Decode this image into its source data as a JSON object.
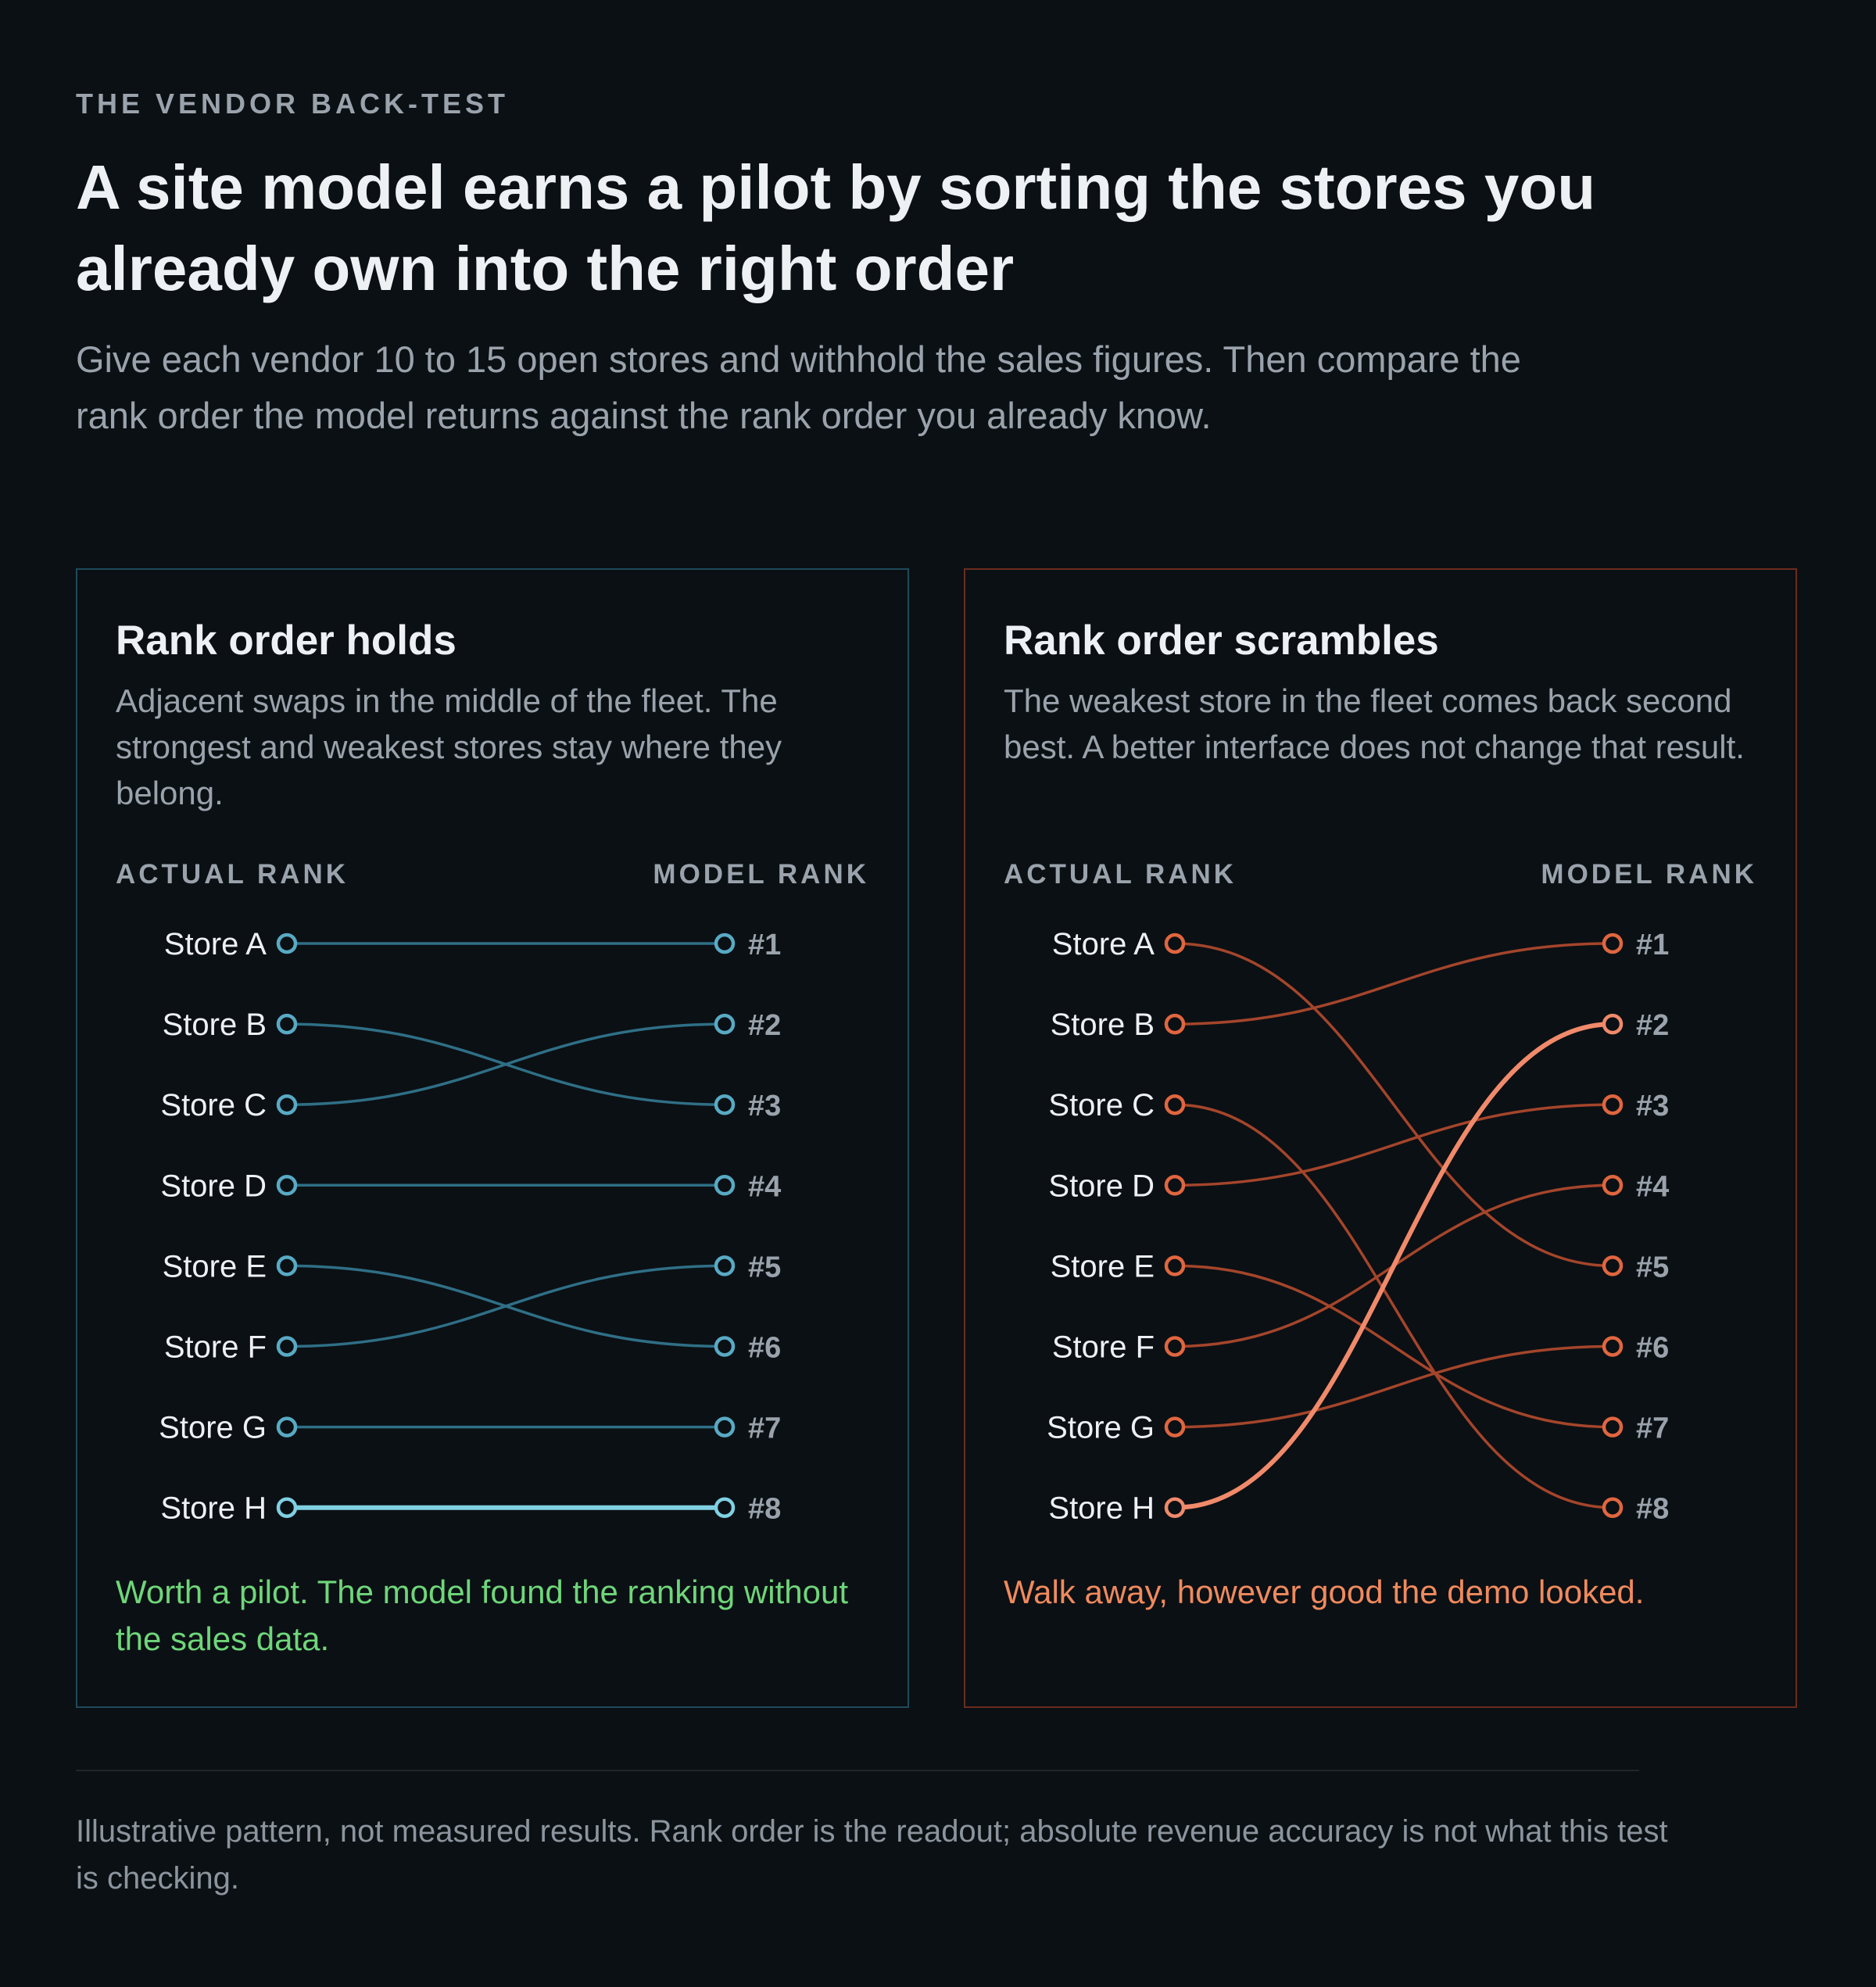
{
  "eyebrow": "THE VENDOR BACK-TEST",
  "headline": "A site model earns a pilot by sorting the stores you already own into the right order",
  "intro": "Give each vendor 10 to 15 open stores and withhold the sales figures. Then compare the rank order the model returns against the rank order you already know.",
  "panels": {
    "left": {
      "title": "Rank order holds",
      "description": "Adjacent swaps in the middle of the fleet. The strongest and weakest stores stay where they belong.",
      "actual_header": "ACTUAL RANK",
      "model_header": "MODEL RANK",
      "verdict": "Worth a pilot. The model found the ranking without the sales data.",
      "line_color": "#2f6f86",
      "highlight_color": "#7fd0e2",
      "verdict_color": "#6fd67a"
    },
    "right": {
      "title": "Rank order scrambles",
      "description": "The weakest store in the fleet comes back second best. A better interface does not change that result.",
      "actual_header": "ACTUAL RANK",
      "model_header": "MODEL RANK",
      "verdict": "Walk away, however good the demo looked.",
      "line_color": "#a4452b",
      "highlight_color": "#f08a6a",
      "verdict_color": "#f08a5d"
    }
  },
  "chart_data": [
    {
      "type": "slope",
      "title": "Rank order holds",
      "stores": [
        "Store A",
        "Store B",
        "Store C",
        "Store D",
        "Store E",
        "Store F",
        "Store G",
        "Store H"
      ],
      "actual_rank": [
        1,
        2,
        3,
        4,
        5,
        6,
        7,
        8
      ],
      "model_rank": [
        1,
        3,
        2,
        4,
        6,
        5,
        7,
        8
      ],
      "model_labels": [
        "#1",
        "#2",
        "#3",
        "#4",
        "#5",
        "#6",
        "#7",
        "#8"
      ],
      "highlight": "Store H"
    },
    {
      "type": "slope",
      "title": "Rank order scrambles",
      "stores": [
        "Store A",
        "Store B",
        "Store C",
        "Store D",
        "Store E",
        "Store F",
        "Store G",
        "Store H"
      ],
      "actual_rank": [
        1,
        2,
        3,
        4,
        5,
        6,
        7,
        8
      ],
      "model_rank": [
        5,
        1,
        8,
        3,
        7,
        4,
        6,
        2
      ],
      "model_labels": [
        "#1",
        "#2",
        "#3",
        "#4",
        "#5",
        "#6",
        "#7",
        "#8"
      ],
      "highlight": "Store H"
    }
  ],
  "footnote": "Illustrative pattern, not measured results. Rank order is the readout; absolute revenue accuracy is not what this test is checking."
}
